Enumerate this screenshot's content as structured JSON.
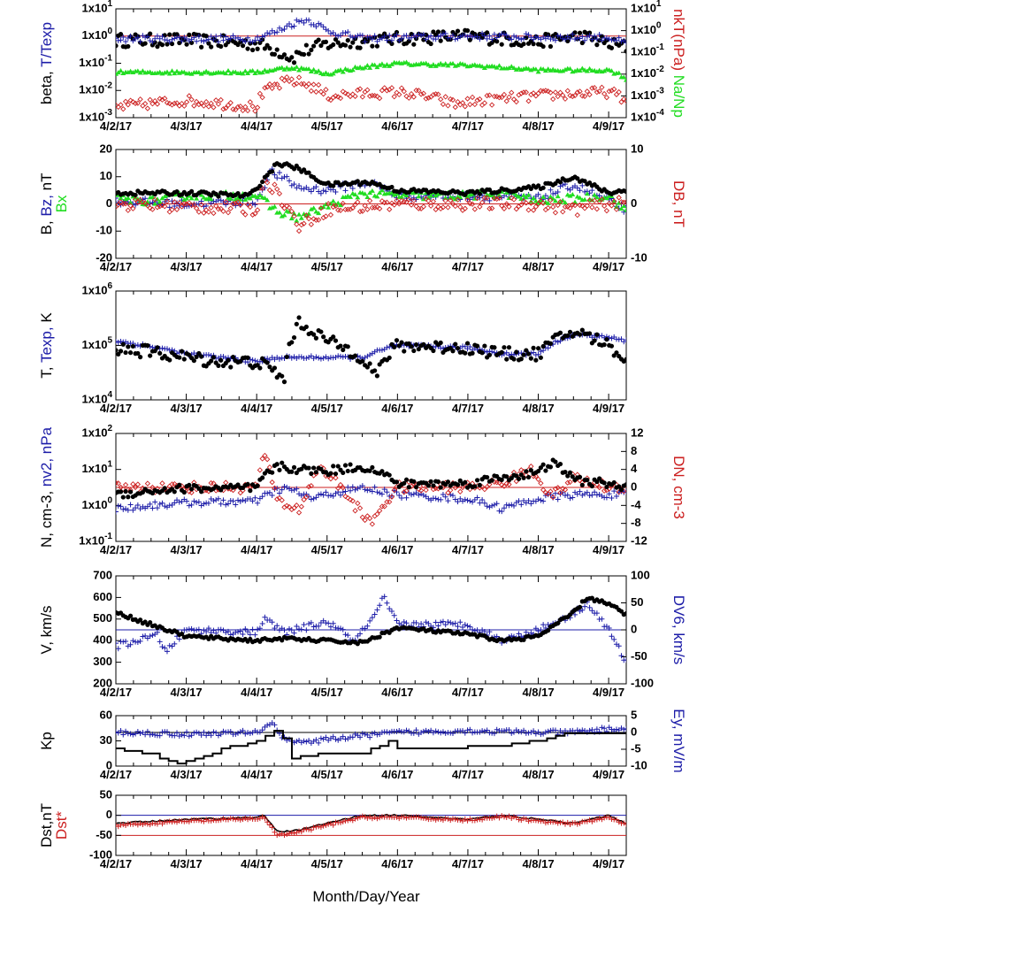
{
  "colors": {
    "black": "#000000",
    "blue": "#1c1ca8",
    "red": "#cc2020",
    "green": "#22dd22"
  },
  "x_title": "Month/Day/Year",
  "chart_data": [
    {
      "type": "scatter",
      "x_range": [
        "2017-04-02",
        "2017-04-09T06:00"
      ],
      "x_ticks": [
        "4/2/17",
        "4/3/17",
        "4/4/17",
        "4/5/17",
        "4/6/17",
        "4/7/17",
        "4/8/17",
        "4/9/17"
      ],
      "y_scale": "log",
      "ylim": [
        0.001,
        10
      ],
      "y_ticks": [
        "1x10-3",
        "1x10-2",
        "1x10-1",
        "1x100",
        "1x101"
      ],
      "y2_scale": "log",
      "y2lim": [
        0.0001,
        10
      ],
      "y2_ticks": [
        "1x10-4",
        "1x10-3",
        "1x10-2",
        "1x10-1",
        "1x100",
        "1x101"
      ],
      "ylabel": [
        {
          "text": "beta,",
          "color": "black"
        },
        {
          "text": "T/Texp",
          "color": "blue"
        }
      ],
      "ylabel2": [
        {
          "text": "nkT(nPa)",
          "color": "red"
        },
        {
          "text": "Na/Np",
          "color": "green"
        }
      ],
      "hlines": [
        {
          "y": 1,
          "color": "red"
        }
      ],
      "series": [
        {
          "color": "black",
          "marker": "dot",
          "axis": "left",
          "curve": "BETA"
        },
        {
          "color": "blue",
          "marker": "plus",
          "axis": "left",
          "curve": "TRATIO"
        },
        {
          "color": "red",
          "marker": "diamond",
          "axis": "right",
          "curve": "PTH"
        },
        {
          "color": "green",
          "marker": "triangle",
          "axis": "right",
          "curve": "ALPHA"
        }
      ]
    },
    {
      "type": "scatter",
      "x_range": [
        "2017-04-02",
        "2017-04-09T06:00"
      ],
      "x_ticks": [
        "4/2/17",
        "4/3/17",
        "4/4/17",
        "4/5/17",
        "4/6/17",
        "4/7/17",
        "4/8/17",
        "4/9/17"
      ],
      "ylim": [
        -20,
        20
      ],
      "y_ticks": [
        "-20",
        "-10",
        "0",
        "10",
        "20"
      ],
      "y2lim": [
        -10,
        10
      ],
      "y2_ticks": [
        "-10",
        "0",
        "10"
      ],
      "ylabel": [
        {
          "text": "B,",
          "color": "black"
        },
        {
          "text": "Bz,",
          "color": "blue"
        },
        {
          "text": "nT",
          "color": "black"
        }
      ],
      "ylabel_extra": [
        {
          "text": "Bx",
          "color": "green"
        }
      ],
      "ylabel2": [
        {
          "text": "DB, nT",
          "color": "red"
        }
      ],
      "hlines": [
        {
          "y": 0,
          "color": "red"
        }
      ],
      "series": [
        {
          "color": "blue",
          "marker": "plus",
          "axis": "left",
          "curve": "BZ"
        },
        {
          "color": "green",
          "marker": "triangle",
          "axis": "left",
          "curve": "BX"
        },
        {
          "color": "red",
          "marker": "diamond",
          "axis": "right",
          "curve": "DB"
        },
        {
          "color": "black",
          "marker": "dot",
          "axis": "left",
          "curve": "BMAG"
        }
      ]
    },
    {
      "type": "scatter",
      "x_range": [
        "2017-04-02",
        "2017-04-09T06:00"
      ],
      "x_ticks": [
        "4/2/17",
        "4/3/17",
        "4/4/17",
        "4/5/17",
        "4/6/17",
        "4/7/17",
        "4/8/17",
        "4/9/17"
      ],
      "y_scale": "log",
      "ylim": [
        10000,
        1000000
      ],
      "y_ticks": [
        "1x104",
        "1x105",
        "1x106"
      ],
      "ylabel": [
        {
          "text": "T,",
          "color": "black"
        },
        {
          "text": "Texp,",
          "color": "blue"
        },
        {
          "text": "K",
          "color": "black"
        }
      ],
      "series": [
        {
          "color": "blue",
          "marker": "plus",
          "axis": "left",
          "curve": "TEXP"
        },
        {
          "color": "black",
          "marker": "dot",
          "axis": "left",
          "curve": "TEMP"
        }
      ]
    },
    {
      "type": "scatter",
      "x_range": [
        "2017-04-02",
        "2017-04-09T06:00"
      ],
      "x_ticks": [
        "4/2/17",
        "4/3/17",
        "4/4/17",
        "4/5/17",
        "4/6/17",
        "4/7/17",
        "4/8/17",
        "4/9/17"
      ],
      "y_scale": "log",
      "ylim": [
        0.1,
        100
      ],
      "y_ticks": [
        "1x10-1",
        "1x100",
        "1x101",
        "1x102"
      ],
      "y2lim": [
        -12,
        12
      ],
      "y2_ticks": [
        "-12",
        "-8",
        "-4",
        "0",
        "4",
        "8",
        "12"
      ],
      "ylabel": [
        {
          "text": "N, cm-3,",
          "color": "black"
        },
        {
          "text": "nv2, nPa",
          "color": "blue"
        }
      ],
      "ylabel2": [
        {
          "text": "DN, cm-3",
          "color": "red"
        }
      ],
      "hlines": [
        {
          "y2": 0,
          "color": "red"
        }
      ],
      "series": [
        {
          "color": "blue",
          "marker": "plus",
          "axis": "left",
          "curve": "PDYN"
        },
        {
          "color": "red",
          "marker": "diamond",
          "axis": "right",
          "curve": "DN"
        },
        {
          "color": "black",
          "marker": "dot",
          "axis": "left",
          "curve": "DENS"
        }
      ]
    },
    {
      "type": "scatter",
      "x_range": [
        "2017-04-02",
        "2017-04-09T06:00"
      ],
      "x_ticks": [
        "4/2/17",
        "4/3/17",
        "4/4/17",
        "4/5/17",
        "4/6/17",
        "4/7/17",
        "4/8/17",
        "4/9/17"
      ],
      "ylim": [
        200,
        700
      ],
      "y_ticks": [
        "200",
        "300",
        "400",
        "500",
        "600",
        "700"
      ],
      "y2lim": [
        -100,
        100
      ],
      "y2_ticks": [
        "-100",
        "-50",
        "0",
        "50",
        "100"
      ],
      "ylabel": [
        {
          "text": "V, km/s",
          "color": "black"
        }
      ],
      "ylabel2": [
        {
          "text": "DV6, km/s",
          "color": "blue"
        }
      ],
      "hlines": [
        {
          "y2": 0,
          "color": "blue"
        }
      ],
      "series": [
        {
          "color": "blue",
          "marker": "plus",
          "axis": "right",
          "curve": "DV6"
        },
        {
          "color": "black",
          "marker": "dot",
          "axis": "left",
          "curve": "VEL"
        }
      ]
    },
    {
      "type": "line",
      "x_range": [
        "2017-04-02",
        "2017-04-09T06:00"
      ],
      "x_ticks": [
        "4/2/17",
        "4/3/17",
        "4/4/17",
        "4/5/17",
        "4/6/17",
        "4/7/17",
        "4/8/17",
        "4/9/17"
      ],
      "ylim": [
        0,
        60
      ],
      "y_ticks": [
        "0",
        "30",
        "60"
      ],
      "y2lim": [
        -10,
        5
      ],
      "y2_ticks": [
        "-10",
        "-5",
        "0",
        "5"
      ],
      "ylabel": [
        {
          "text": "Kp",
          "color": "black"
        }
      ],
      "ylabel2": [
        {
          "text": "Ey,  mV/m",
          "color": "blue"
        }
      ],
      "hlines": [
        {
          "y2": 0,
          "color": "black"
        }
      ],
      "series": [
        {
          "color": "blue",
          "marker": "plus",
          "axis": "right",
          "curve": "EY"
        },
        {
          "color": "black",
          "marker": "step",
          "axis": "left",
          "curve": "KP"
        }
      ]
    },
    {
      "type": "line",
      "x_range": [
        "2017-04-02",
        "2017-04-09T06:00"
      ],
      "x_ticks": [
        "4/2/17",
        "4/3/17",
        "4/4/17",
        "4/5/17",
        "4/6/17",
        "4/7/17",
        "4/8/17",
        "4/9/17"
      ],
      "ylim": [
        -100,
        50
      ],
      "y_ticks": [
        "-100",
        "-50",
        "0",
        "50"
      ],
      "ylabel": [
        {
          "text": "Dst,nT",
          "color": "black"
        }
      ],
      "ylabel_extra": [
        {
          "text": "Dst*",
          "color": "red"
        }
      ],
      "hlines": [
        {
          "y": 0,
          "color": "blue"
        },
        {
          "y": -50,
          "color": "red"
        }
      ],
      "series": [
        {
          "color": "black",
          "marker": "line",
          "axis": "left",
          "curve": "DST"
        },
        {
          "color": "red",
          "marker": "plus",
          "axis": "left",
          "curve": "DSTSTAR"
        }
      ]
    }
  ]
}
